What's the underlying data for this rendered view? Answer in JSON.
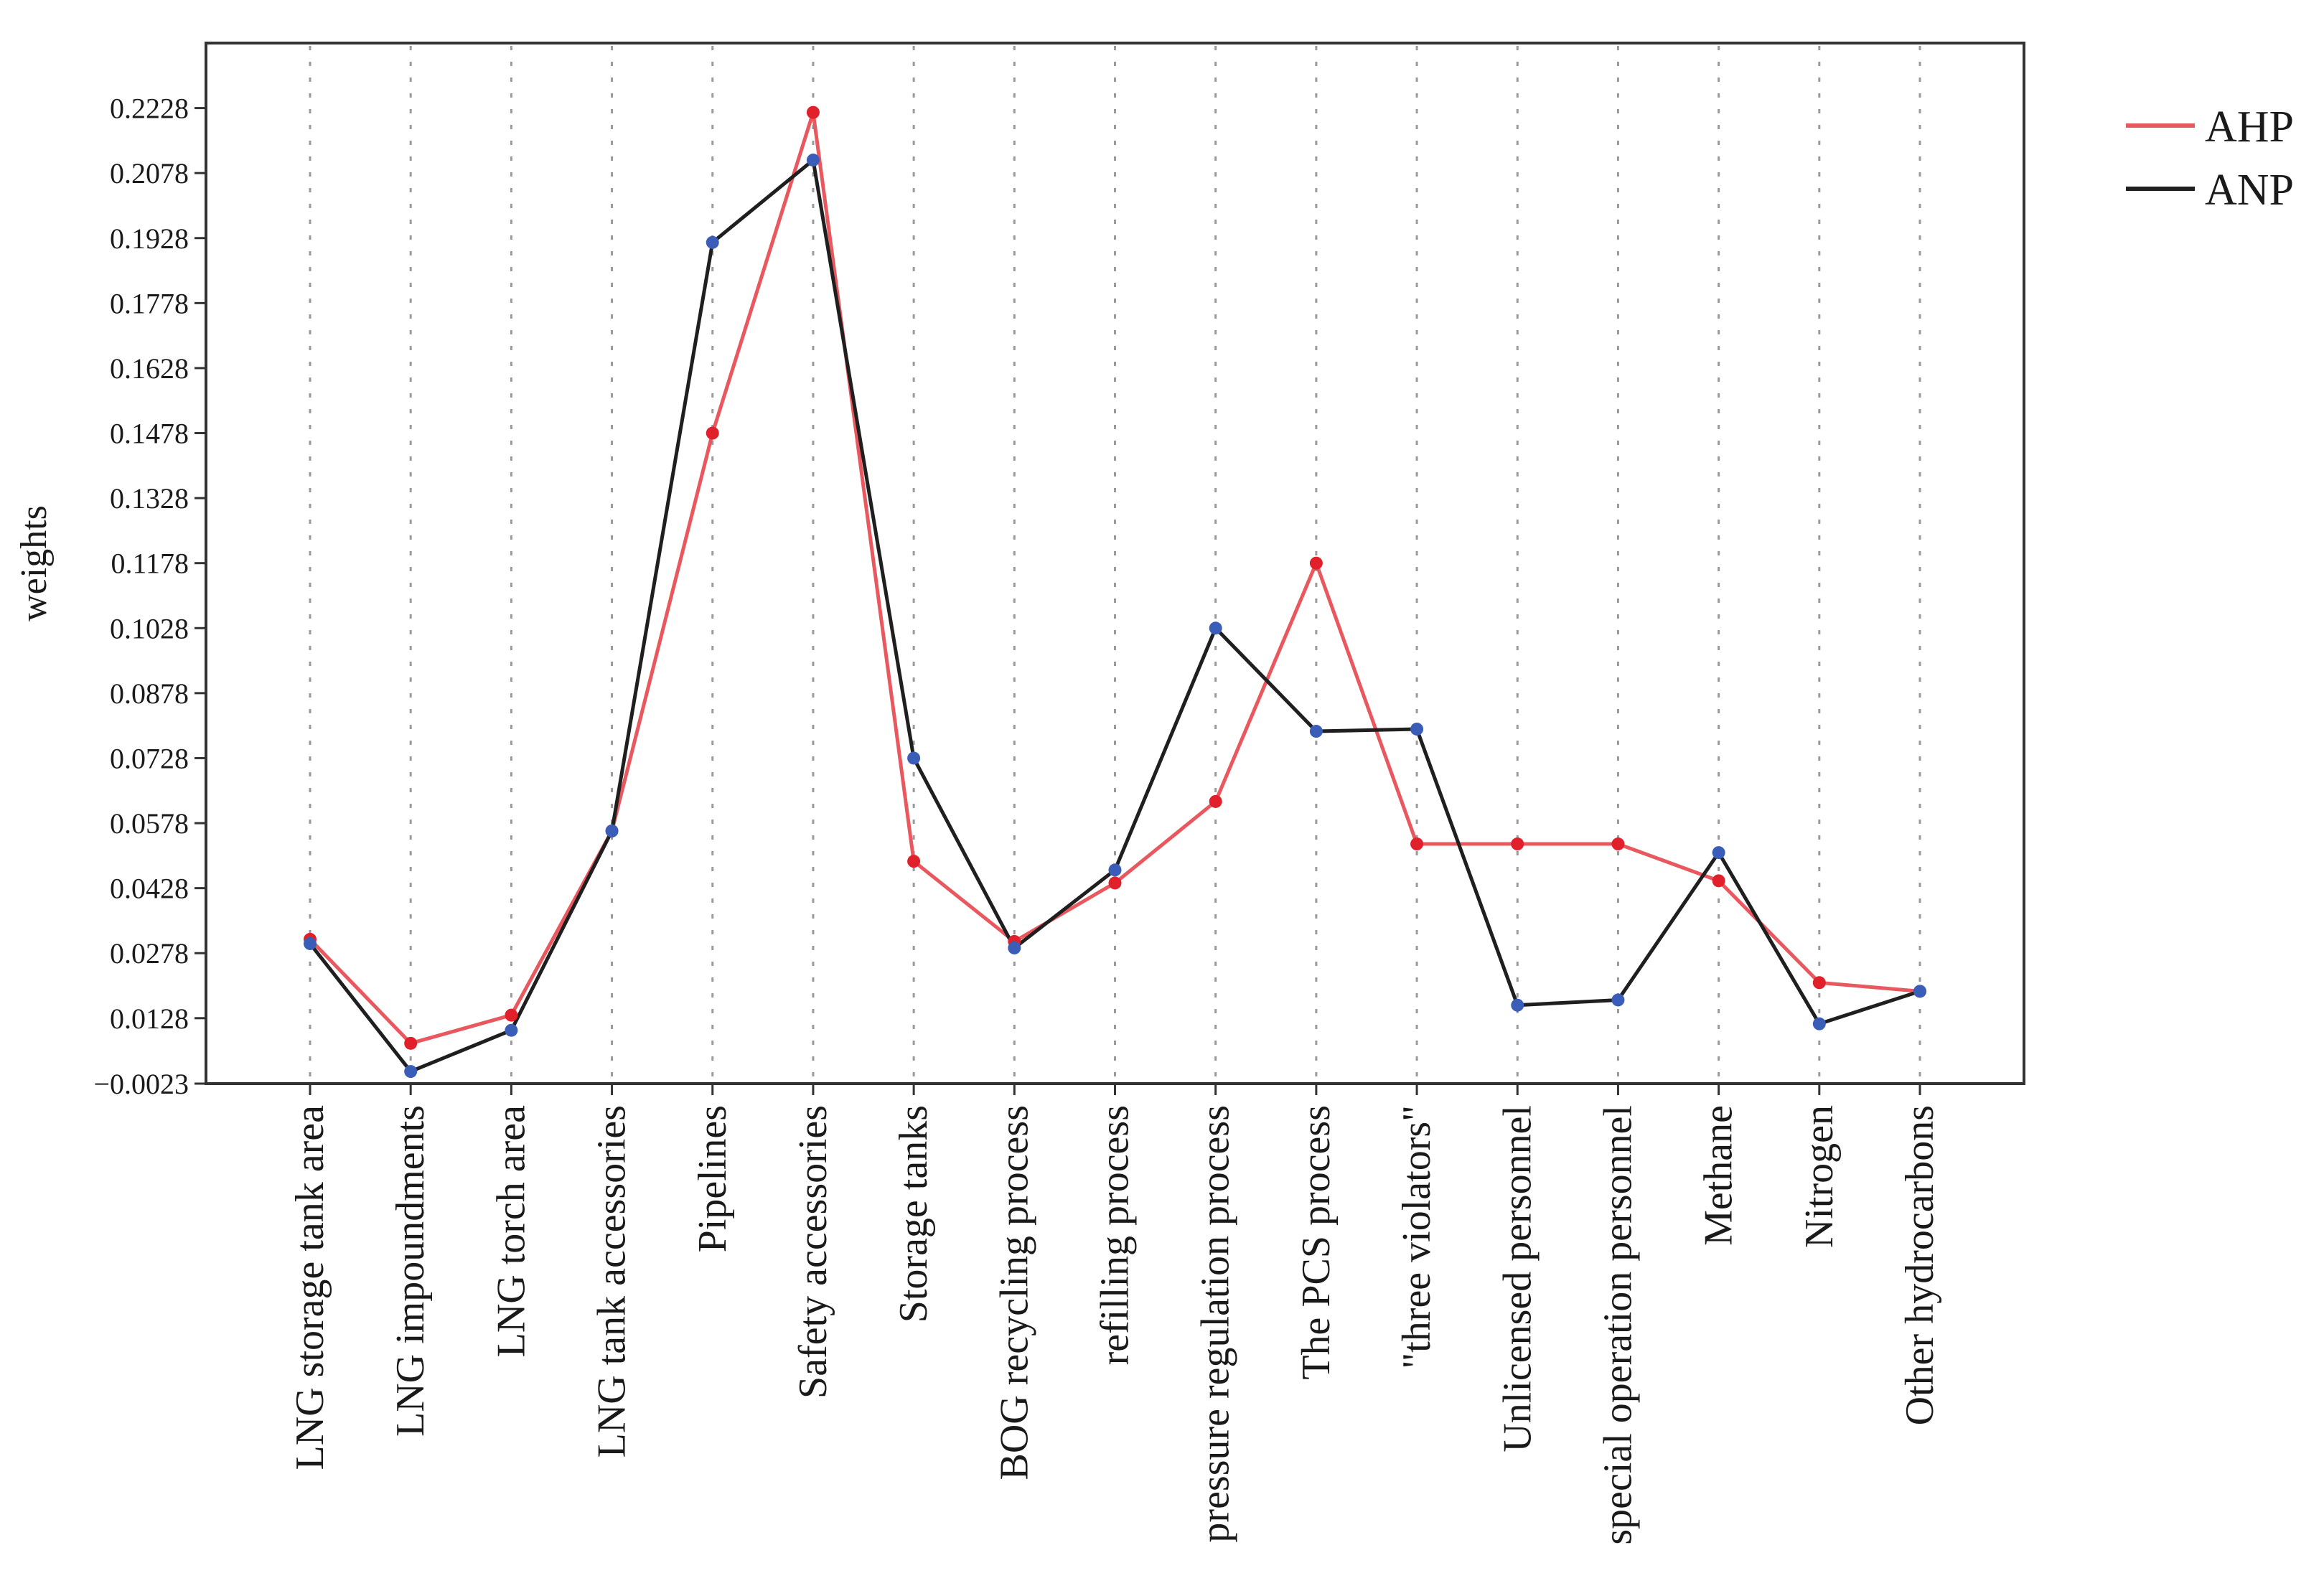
{
  "chart_data": {
    "type": "line",
    "title": "",
    "xlabel": "",
    "ylabel": "weights",
    "ylim": [
      -0.0023,
      0.2378
    ],
    "yticks": [
      "0.2228",
      "0.2078",
      "0.1928",
      "0.1778",
      "0.1628",
      "0.1478",
      "0.1328",
      "0.1178",
      "0.1028",
      "0.0878",
      "0.0728",
      "0.0578",
      "0.0428",
      "0.0278",
      "0.0128",
      "−0.0023"
    ],
    "ytick_values": [
      0.2228,
      0.2078,
      0.1928,
      0.1778,
      0.1628,
      0.1478,
      0.1328,
      0.1178,
      0.1028,
      0.0878,
      0.0728,
      0.0578,
      0.0428,
      0.0278,
      0.0128,
      -0.0023
    ],
    "categories": [
      "LNG storage tank area",
      "LNG impoundments",
      "LNG torch area",
      "LNG tank accessories",
      "Pipelines",
      "Safety accessories",
      "Storage tanks",
      "BOG recycling process",
      "refilling process",
      "pressure regulation process",
      "The PCS process",
      "\"three violators\"",
      "Unlicensed personnel",
      "special operation personnel",
      "Methane",
      "Nitrogen",
      "Other hydrocarbons"
    ],
    "series": [
      {
        "name": "AHP",
        "color": "#e8585e",
        "marker_color": "#e0202a",
        "values": [
          0.031,
          0.007,
          0.0135,
          0.056,
          0.1478,
          0.2218,
          0.049,
          0.0305,
          0.044,
          0.0628,
          0.1178,
          0.053,
          0.053,
          0.053,
          0.0445,
          0.021,
          0.019
        ]
      },
      {
        "name": "ANP",
        "color": "#1f1f1f",
        "marker_color": "#3a5db8",
        "values": [
          0.03,
          0.0005,
          0.01,
          0.056,
          0.1918,
          0.2108,
          0.0728,
          0.029,
          0.047,
          0.1028,
          0.079,
          0.0795,
          0.0158,
          0.017,
          0.051,
          0.0115,
          0.019
        ]
      }
    ],
    "grid": "vertical-dotted",
    "legend": "top-right"
  }
}
